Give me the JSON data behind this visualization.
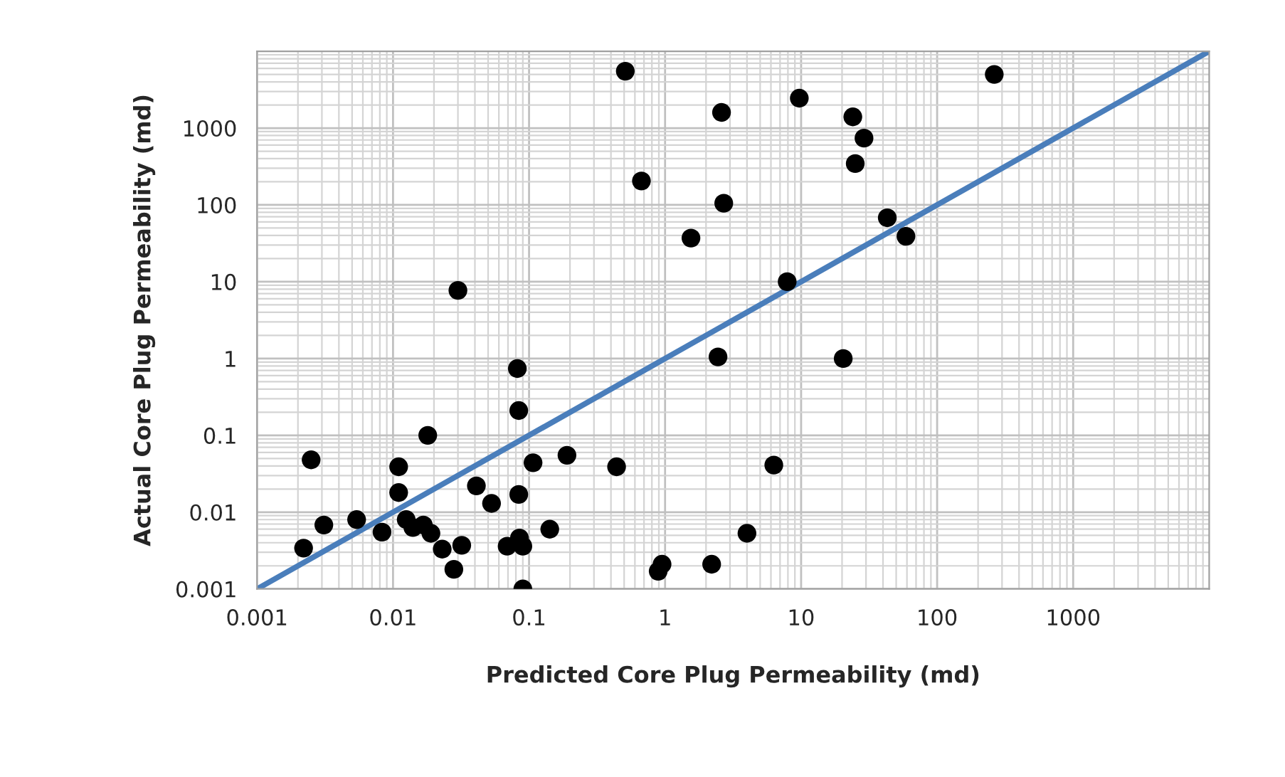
{
  "chart_data": {
    "type": "scatter",
    "xlabel": "Predicted Core Plug Permeability (md)",
    "ylabel": "Actual Core Plug Permeability (md)",
    "log": "xy",
    "grid": true,
    "marker": "circle",
    "xlim": [
      0.001,
      10000
    ],
    "ylim": [
      0.001,
      10000
    ],
    "xticks": [
      0.001,
      0.01,
      0.1,
      1,
      10,
      100,
      1000
    ],
    "yticks": [
      0.001,
      0.01,
      0.1,
      1,
      10,
      100,
      1000
    ],
    "series": [
      {
        "color": "#000000",
        "x": [
          0.0022,
          0.0025,
          0.0031,
          0.0054,
          0.0083,
          0.011,
          0.011,
          0.0125,
          0.014,
          0.0167,
          0.018,
          0.019,
          0.023,
          0.028,
          0.032,
          0.03,
          0.041,
          0.053,
          0.069,
          0.082,
          0.084,
          0.084,
          0.085,
          0.09,
          0.09,
          0.107,
          0.142,
          0.19,
          0.44,
          0.51,
          0.67,
          0.89,
          0.95,
          1.55,
          2.2,
          2.45,
          2.6,
          2.7,
          4.0,
          6.3,
          7.9,
          9.7,
          20.4,
          24,
          29,
          25,
          43,
          59,
          263
        ],
        "values": [
          0.0034,
          0.048,
          0.0068,
          0.008,
          0.0055,
          0.039,
          0.018,
          0.008,
          0.0063,
          0.0068,
          0.1,
          0.0053,
          0.0033,
          0.0018,
          0.0037,
          7.7,
          0.022,
          0.013,
          0.0036,
          0.74,
          0.21,
          0.017,
          0.0046,
          0.0036,
          0.001,
          0.044,
          0.006,
          0.055,
          0.039,
          5500,
          205,
          0.0017,
          0.0021,
          37,
          0.0021,
          1.05,
          1600,
          105,
          0.0053,
          0.041,
          10,
          2450,
          1.0,
          1400,
          740,
          345,
          68,
          39,
          5000
        ]
      },
      {
        "type": "line",
        "color": "#4a7ebb",
        "marker": "none",
        "x": [
          0.001,
          10000
        ],
        "values": [
          0.001,
          10000
        ]
      }
    ]
  }
}
